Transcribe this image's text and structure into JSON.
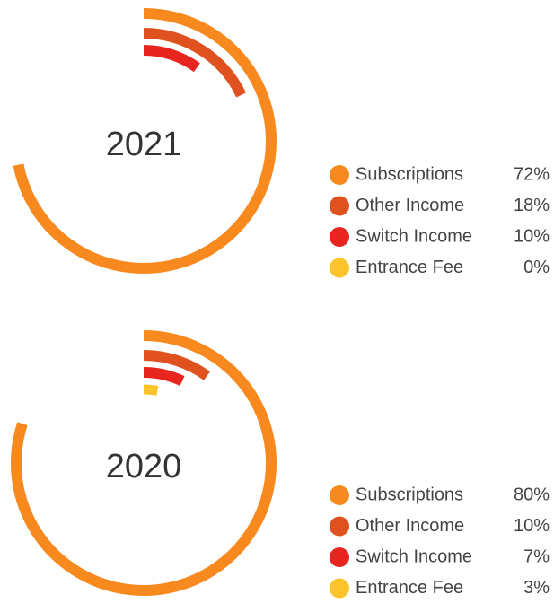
{
  "chart_data": [
    {
      "type": "radial_bar",
      "title": "2021",
      "categories": [
        "Subscriptions",
        "Other Income",
        "Switch Income",
        "Entrance Fee"
      ],
      "colors": [
        "#f7891f",
        "#df521f",
        "#e8251e",
        "#fcc42a"
      ],
      "values": [
        72,
        18,
        10,
        0
      ],
      "value_labels": [
        "72%",
        "18%",
        "10%",
        "0%"
      ],
      "xlim": [
        0,
        100
      ]
    },
    {
      "type": "radial_bar",
      "title": "2020",
      "categories": [
        "Subscriptions",
        "Other Income",
        "Switch Income",
        "Entrance Fee"
      ],
      "colors": [
        "#f7891f",
        "#df521f",
        "#e8251e",
        "#fcc42a"
      ],
      "values": [
        80,
        10,
        7,
        3
      ],
      "value_labels": [
        "80%",
        "10%",
        "7%",
        "3%"
      ],
      "xlim": [
        0,
        100
      ]
    }
  ]
}
